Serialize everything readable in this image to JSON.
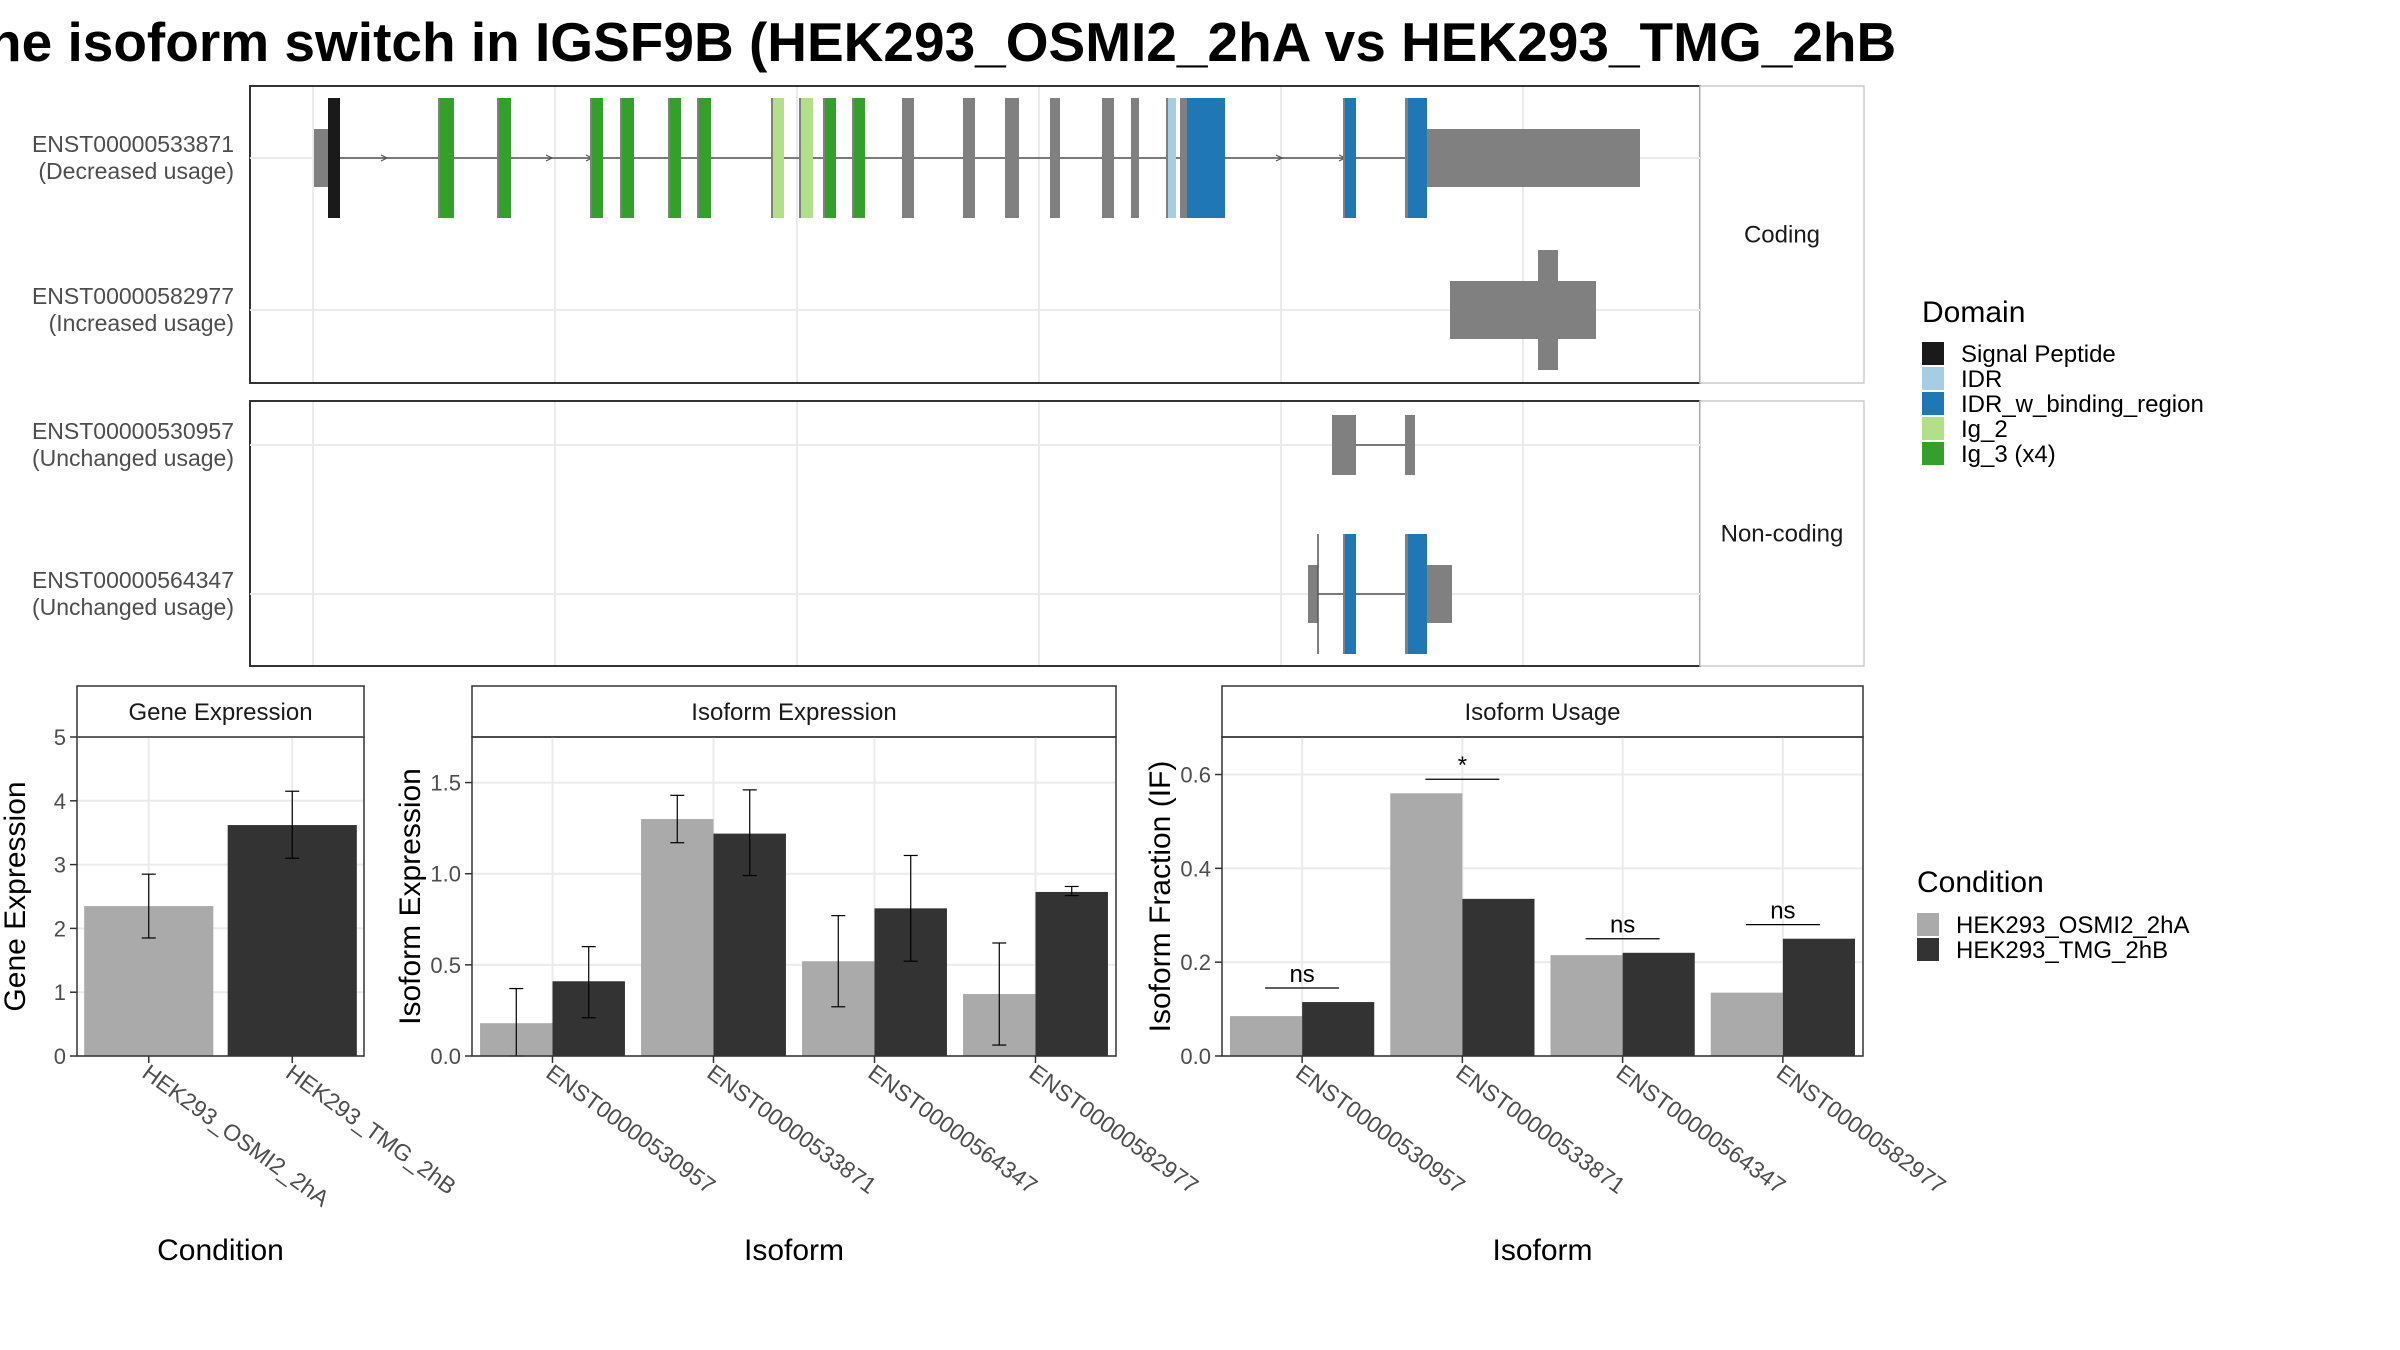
{
  "title": "he isoform switch in IGSF9B (HEK293_OSMI2_2hA vs HEK293_TMG_2hB",
  "colors": {
    "Signal Peptide": "#1a1a1a",
    "IDR": "#a6cee3",
    "IDR_w_binding_region": "#1f78b4",
    "Ig_2": "#b2df8a",
    "Ig_3 (x4)": "#33a02c",
    "exon": "#808080",
    "cond_a": "#aaaaaa",
    "cond_b": "#333333"
  },
  "structure": {
    "facets": [
      "Coding",
      "Non-coding"
    ],
    "transcripts": [
      {
        "id": "ENST00000533871",
        "usage": "(Decreased usage)",
        "facet": "Coding"
      },
      {
        "id": "ENST00000582977",
        "usage": "(Increased usage)",
        "facet": "Coding"
      },
      {
        "id": "ENST00000530957",
        "usage": "(Unchanged usage)",
        "facet": "Non-coding"
      },
      {
        "id": "ENST00000564347",
        "usage": "(Unchanged usage)",
        "facet": "Non-coding"
      }
    ]
  },
  "legend_domain": {
    "title": "Domain",
    "items": [
      "Signal Peptide",
      "IDR",
      "IDR_w_binding_region",
      "Ig_2",
      "Ig_3 (x4)"
    ]
  },
  "legend_condition": {
    "title": "Condition",
    "items": [
      "HEK293_OSMI2_2hA",
      "HEK293_TMG_2hB"
    ]
  },
  "chart_data": [
    {
      "type": "bar",
      "title": "Gene Expression",
      "xlabel": "Condition",
      "ylabel": "Gene Expression",
      "ylim": [
        0,
        5
      ],
      "yticks": [
        "0",
        "1",
        "2",
        "3",
        "4",
        "5"
      ],
      "categories": [
        "HEK293_OSMI2_2hA",
        "HEK293_TMG_2hB"
      ],
      "values": [
        2.35,
        3.62
      ],
      "errors": [
        [
          1.85,
          2.85
        ],
        [
          3.1,
          4.15
        ]
      ]
    },
    {
      "type": "bar",
      "title": "Isoform Expression",
      "xlabel": "Isoform",
      "ylabel": "Isoform Expression",
      "ylim": [
        0,
        1.75
      ],
      "yticks": [
        "0.0",
        "0.5",
        "1.0",
        "1.5"
      ],
      "categories": [
        "ENST00000530957",
        "ENST00000533871",
        "ENST00000564347",
        "ENST00000582977"
      ],
      "series": [
        {
          "name": "HEK293_OSMI2_2hA",
          "values": [
            0.18,
            1.3,
            0.52,
            0.34
          ],
          "errors": [
            [
              0.0,
              0.37
            ],
            [
              1.17,
              1.43
            ],
            [
              0.27,
              0.77
            ],
            [
              0.06,
              0.62
            ]
          ]
        },
        {
          "name": "HEK293_TMG_2hB",
          "values": [
            0.41,
            1.22,
            0.81,
            0.9
          ],
          "errors": [
            [
              0.21,
              0.6
            ],
            [
              0.99,
              1.46
            ],
            [
              0.52,
              1.1
            ],
            [
              0.88,
              0.93
            ]
          ]
        }
      ]
    },
    {
      "type": "bar",
      "title": "Isoform Usage",
      "xlabel": "Isoform",
      "ylabel": "Isoform Fraction (IF)",
      "ylim": [
        0,
        0.68
      ],
      "yticks": [
        "0.0",
        "0.2",
        "0.4",
        "0.6"
      ],
      "categories": [
        "ENST00000530957",
        "ENST00000533871",
        "ENST00000564347",
        "ENST00000582977"
      ],
      "series": [
        {
          "name": "HEK293_OSMI2_2hA",
          "values": [
            0.085,
            0.56,
            0.215,
            0.135
          ]
        },
        {
          "name": "HEK293_TMG_2hB",
          "values": [
            0.115,
            0.335,
            0.22,
            0.25
          ]
        }
      ],
      "significance": [
        {
          "label": "ns",
          "y": 0.145
        },
        {
          "label": "*",
          "y": 0.59
        },
        {
          "label": "ns",
          "y": 0.25
        },
        {
          "label": "ns",
          "y": 0.28
        }
      ]
    }
  ]
}
